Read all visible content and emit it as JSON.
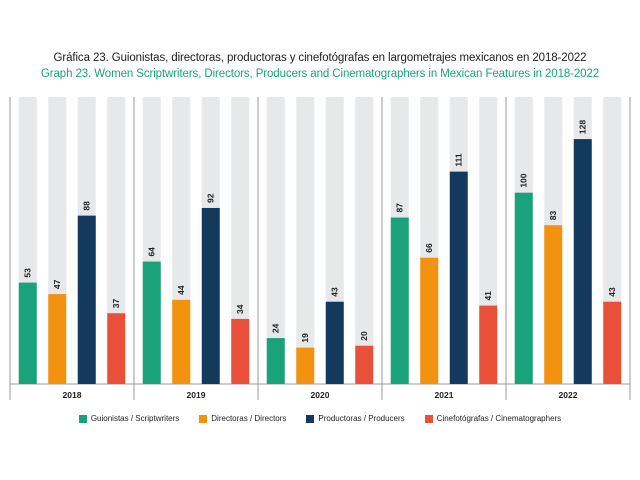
{
  "chart_data": {
    "type": "bar",
    "title": "Gráfica 23. Guionistas, directoras, productoras y cinefotógrafas en largometrajes mexicanos en 2018-2022",
    "subtitle": "Graph 23. Women Scriptwriters, Directors, Producers and Cinematographers in Mexican Features in 2018-2022",
    "categories": [
      "2018",
      "2019",
      "2020",
      "2021",
      "2022"
    ],
    "series": [
      {
        "name": "Guionistas / Scriptwriters",
        "color": "#1aa37a",
        "values": [
          53,
          64,
          24,
          87,
          100
        ]
      },
      {
        "name": "Directoras / Directors",
        "color": "#f2920f",
        "values": [
          47,
          44,
          19,
          66,
          83
        ]
      },
      {
        "name": "Productoras / Producers",
        "color": "#133a5e",
        "values": [
          88,
          92,
          43,
          111,
          128
        ]
      },
      {
        "name": "Cinefotógrafas / Cinematographers",
        "color": "#e8503a",
        "values": [
          37,
          34,
          20,
          41,
          43
        ]
      }
    ],
    "ylim": [
      0,
      150
    ],
    "xlabel": "",
    "ylabel": "",
    "background_bar_color": "#e6e8ea"
  }
}
